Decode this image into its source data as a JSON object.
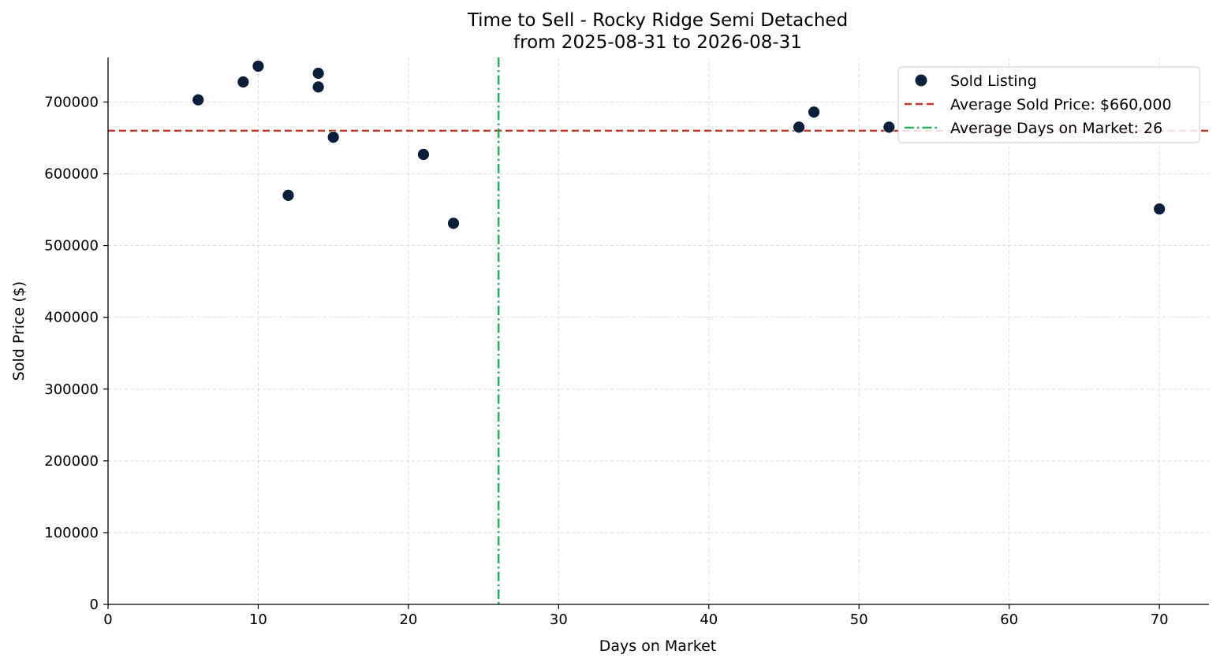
{
  "chart_data": {
    "type": "scatter",
    "title": "Time to Sell - Rocky Ridge Semi Detached",
    "subtitle": "from 2025-08-31 to 2026-08-31",
    "xlabel": "Days on Market",
    "ylabel": "Sold Price ($)",
    "xlim": [
      0,
      73.3
    ],
    "ylim": [
      0,
      762000
    ],
    "x_ticks": [
      0,
      10,
      20,
      30,
      40,
      50,
      60,
      70
    ],
    "y_ticks": [
      0,
      100000,
      200000,
      300000,
      400000,
      500000,
      600000,
      700000
    ],
    "grid": true,
    "legend_position": "top-right",
    "series": [
      {
        "name": "Sold Listing",
        "color": "#0b1f3a",
        "points": [
          {
            "x": 6,
            "y": 703000
          },
          {
            "x": 9,
            "y": 728000
          },
          {
            "x": 10,
            "y": 750000
          },
          {
            "x": 12,
            "y": 570000
          },
          {
            "x": 14,
            "y": 740000
          },
          {
            "x": 14,
            "y": 721000
          },
          {
            "x": 15,
            "y": 651000
          },
          {
            "x": 21,
            "y": 627000
          },
          {
            "x": 23,
            "y": 531000
          },
          {
            "x": 46,
            "y": 665000
          },
          {
            "x": 47,
            "y": 686000
          },
          {
            "x": 52,
            "y": 665000
          },
          {
            "x": 70,
            "y": 551000
          }
        ]
      }
    ],
    "reference_lines": [
      {
        "name": "Average Sold Price: $660,000",
        "orientation": "horizontal",
        "value": 660000,
        "color": "#c0392b",
        "style": "dashed"
      },
      {
        "name": "Average Days on Market: 26",
        "orientation": "vertical",
        "value": 26,
        "color": "#27ae60",
        "style": "dashdot"
      }
    ]
  }
}
